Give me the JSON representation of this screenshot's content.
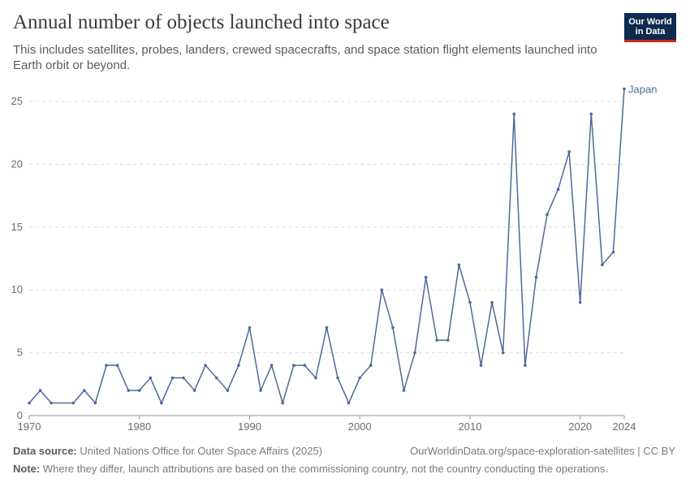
{
  "header": {
    "title": "Annual number of objects launched into space",
    "subtitle": "This includes satellites, probes, landers, crewed spacecrafts, and space station flight elements launched into Earth orbit or beyond."
  },
  "logo": {
    "line1": "Our World",
    "line2": "in Data"
  },
  "footer": {
    "source_label": "Data source:",
    "source_text": "United Nations Office for Outer Space Affairs (2025)",
    "url_text": "OurWorldinData.org/space-exploration-satellites | CC BY",
    "note_label": "Note:",
    "note_text": "Where they differ, launch attributions are based on the commissioning country, not the country conducting the operations."
  },
  "colors": {
    "series": "#4c6a9c",
    "grid": "#dddddd",
    "axis": "#999999"
  },
  "chart_data": {
    "type": "line",
    "xlim": [
      1970,
      2024
    ],
    "ylim": [
      0,
      25
    ],
    "y_ticks": [
      0,
      5,
      10,
      15,
      20,
      25
    ],
    "x_ticks": [
      "1970",
      "1980",
      "1990",
      "2000",
      "2010",
      "2020",
      "2024"
    ],
    "grid": "horizontal dashed",
    "series": [
      {
        "name": "Japan",
        "x": [
          1970,
          1971,
          1972,
          1974,
          1975,
          1976,
          1977,
          1978,
          1979,
          1980,
          1981,
          1982,
          1983,
          1984,
          1985,
          1986,
          1987,
          1988,
          1989,
          1990,
          1991,
          1992,
          1993,
          1994,
          1995,
          1996,
          1997,
          1998,
          1999,
          2000,
          2001,
          2002,
          2003,
          2004,
          2005,
          2006,
          2007,
          2008,
          2009,
          2010,
          2011,
          2012,
          2013,
          2014,
          2015,
          2016,
          2017,
          2018,
          2019,
          2020,
          2021,
          2022,
          2023,
          2024
        ],
        "y": [
          1,
          2,
          1,
          1,
          2,
          1,
          4,
          4,
          2,
          2,
          3,
          1,
          3,
          3,
          2,
          4,
          3,
          2,
          4,
          7,
          2,
          4,
          1,
          4,
          4,
          3,
          7,
          3,
          1,
          3,
          4,
          10,
          7,
          2,
          5,
          11,
          6,
          6,
          12,
          9,
          4,
          9,
          5,
          24,
          4,
          11,
          16,
          18,
          21,
          9,
          24,
          12,
          13,
          26
        ]
      }
    ]
  }
}
